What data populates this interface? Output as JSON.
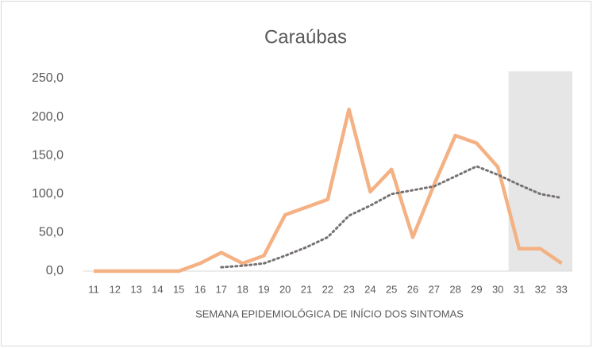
{
  "chart_data": {
    "type": "line",
    "title": "Caraúbas",
    "x_label": "SEMANA EPIDEMIOLÓGICA DE INÍCIO DOS SINTOMAS",
    "categories": [
      "11",
      "12",
      "13",
      "14",
      "15",
      "16",
      "17",
      "18",
      "19",
      "20",
      "21",
      "22",
      "23",
      "24",
      "25",
      "26",
      "27",
      "28",
      "29",
      "30",
      "31",
      "32",
      "33"
    ],
    "series": [
      {
        "color": "#f4b183",
        "style": "solid",
        "values": [
          0,
          0,
          0,
          0,
          0,
          10,
          24,
          10,
          20,
          73,
          83,
          93,
          210,
          103,
          132,
          44,
          112,
          176,
          166,
          135,
          29,
          29,
          10
        ]
      },
      {
        "color": "#767171",
        "style": "dotted",
        "values": [
          null,
          null,
          null,
          null,
          null,
          null,
          5,
          7,
          10,
          20,
          31,
          44,
          72,
          85,
          100,
          105,
          110,
          123,
          136,
          125,
          112,
          100,
          95
        ]
      }
    ],
    "shaded_range": [
      "31",
      "33"
    ],
    "ylim": [
      0,
      250
    ],
    "yticks": [
      {
        "value": 0,
        "label": "0,0"
      },
      {
        "value": 50,
        "label": "50,0"
      },
      {
        "value": 100,
        "label": "100,0"
      },
      {
        "value": 150,
        "label": "150,0"
      },
      {
        "value": 200,
        "label": "200,0"
      },
      {
        "value": 250,
        "label": "250,0"
      }
    ],
    "grid": false
  }
}
